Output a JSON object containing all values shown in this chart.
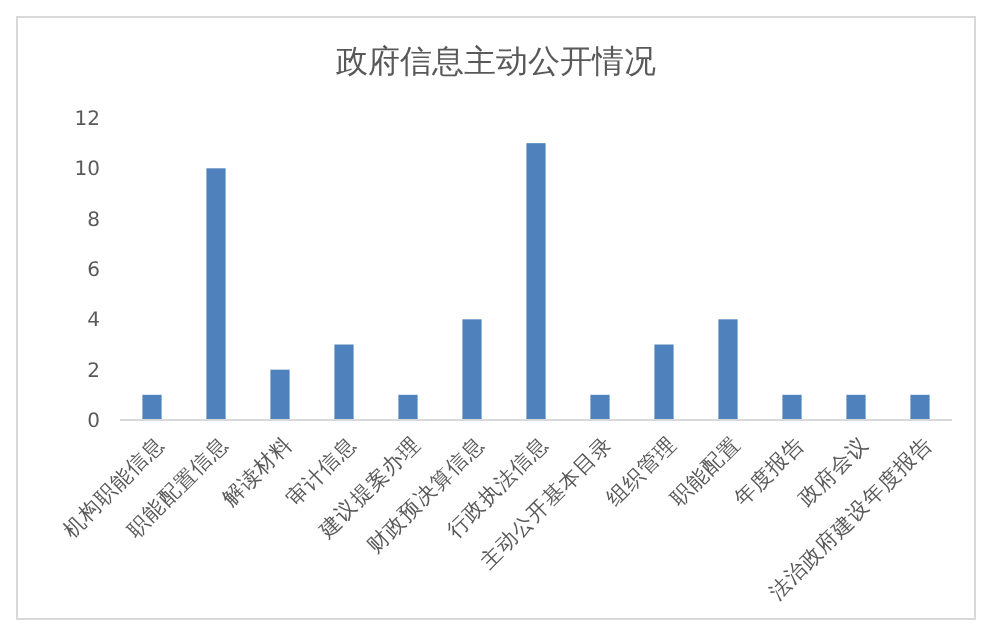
{
  "chart_data": {
    "type": "bar",
    "title": "政府信息主动公开情况",
    "categories": [
      "机构职能信息",
      "职能配置信息",
      "解读材料",
      "审计信息",
      "建议提案办理",
      "财政预决算信息",
      "行政执法信息",
      "主动公开基本目录",
      "组织管理",
      "职能配置",
      "年度报告",
      "政府会议",
      "法治政府建设年度报告"
    ],
    "values": [
      1,
      10,
      2,
      3,
      1,
      4,
      11,
      1,
      3,
      4,
      1,
      1,
      1
    ],
    "color": "#4f81bd",
    "ylim": [
      0,
      12
    ],
    "yticks": [
      0,
      2,
      4,
      6,
      8,
      10,
      12
    ],
    "grid": false
  }
}
